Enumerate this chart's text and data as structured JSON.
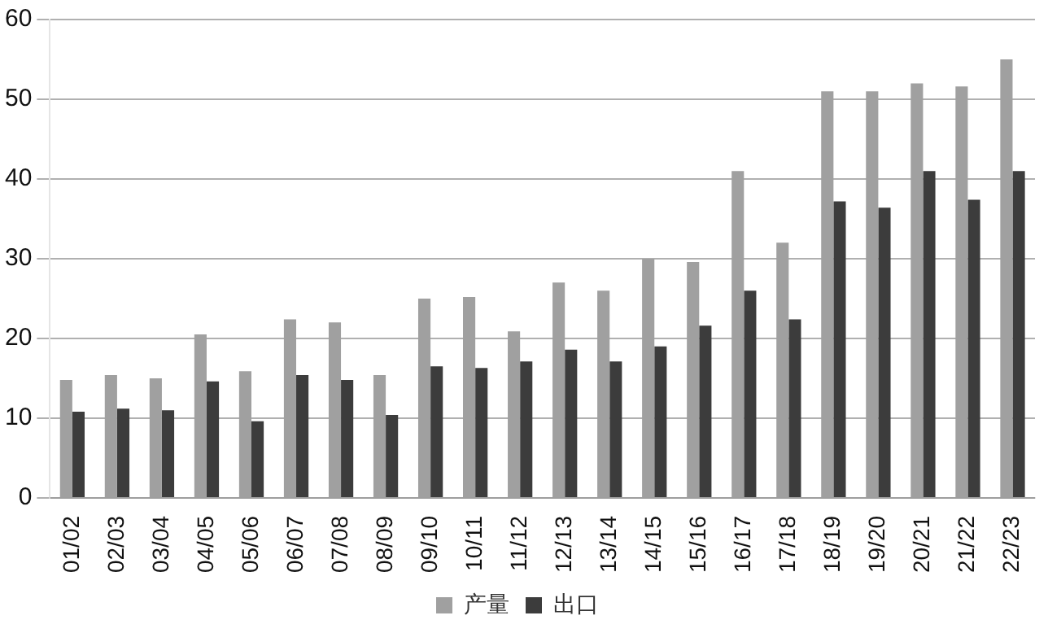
{
  "chart_data": {
    "type": "bar",
    "categories": [
      "01/02",
      "02/03",
      "03/04",
      "04/05",
      "05/06",
      "06/07",
      "07/08",
      "08/09",
      "09/10",
      "10/11",
      "11/12",
      "12/13",
      "13/14",
      "14/15",
      "15/16",
      "16/17",
      "17/18",
      "18/19",
      "19/20",
      "20/21",
      "21/22",
      "22/23"
    ],
    "series": [
      {
        "name": "产量",
        "color": "#a0a0a0",
        "values": [
          14.8,
          15.4,
          15,
          20.5,
          15.9,
          22.4,
          22,
          15.4,
          25,
          25.2,
          20.9,
          27,
          26,
          30,
          29.6,
          41,
          32,
          51,
          51,
          52,
          51.6,
          55
        ]
      },
      {
        "name": "出口",
        "color": "#3c3c3c",
        "values": [
          10.8,
          11.2,
          11,
          14.6,
          9.6,
          15.4,
          14.8,
          10.4,
          16.5,
          16.3,
          17.1,
          18.6,
          17.1,
          19,
          21.6,
          26,
          22.4,
          37.2,
          36.4,
          41,
          37.4,
          41
        ]
      }
    ],
    "ylim": [
      0,
      60
    ],
    "yticks": [
      0,
      10,
      20,
      30,
      40,
      50,
      60
    ],
    "grid": "y",
    "legend": "bottom"
  }
}
